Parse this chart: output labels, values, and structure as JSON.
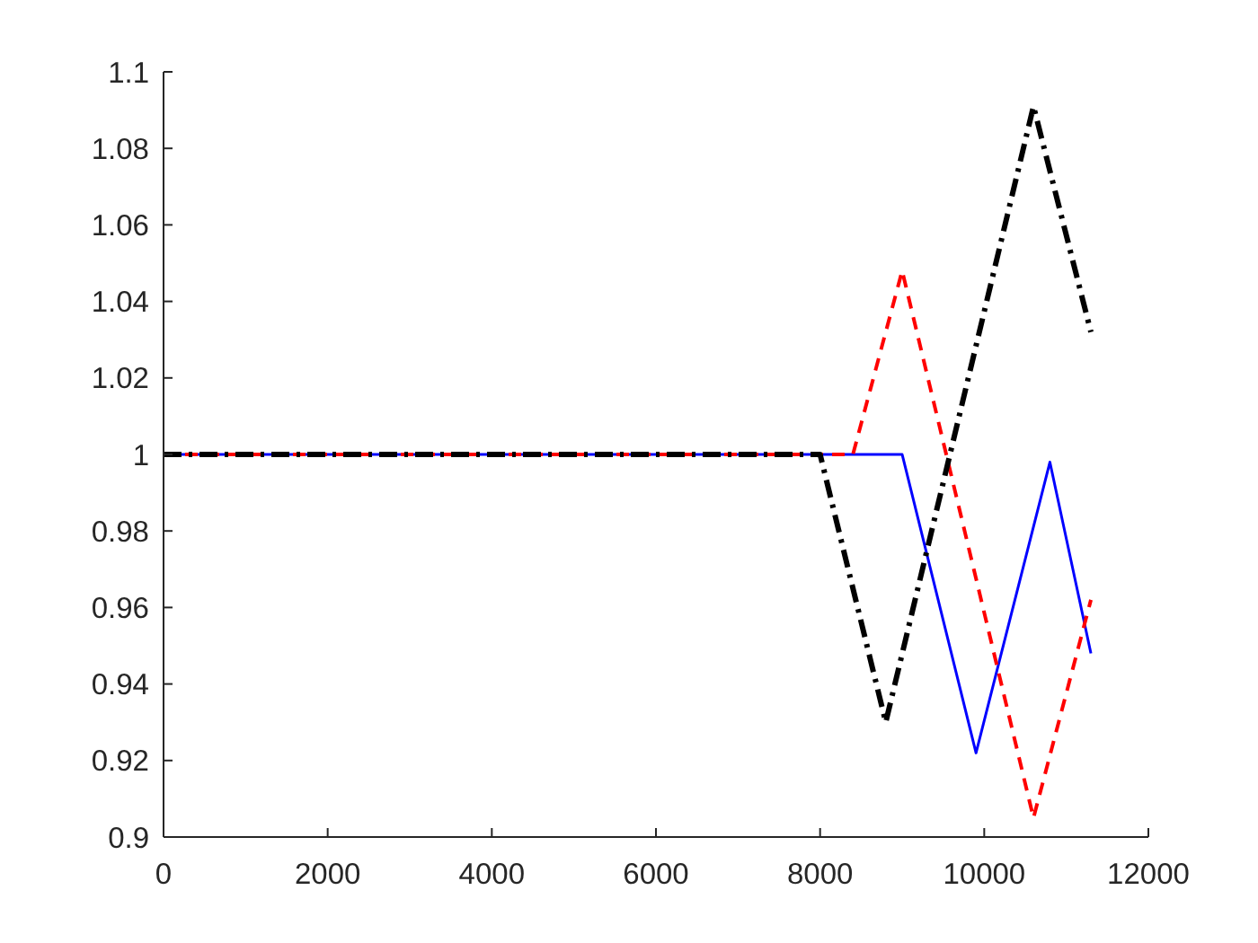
{
  "chart_data": {
    "type": "line",
    "series": [
      {
        "color": "#0000ff",
        "line_style": "solid",
        "x": [
          0,
          9000,
          9900,
          10800,
          11300
        ],
        "values": [
          1,
          1,
          0.922,
          0.998,
          0.948
        ]
      },
      {
        "color": "#ff0000",
        "line_style": "dashed",
        "x": [
          0,
          8400,
          9000,
          10600,
          11300
        ],
        "values": [
          1,
          1,
          1.048,
          0.905,
          0.962
        ]
      },
      {
        "color": "#000000",
        "line_style": "dashdot",
        "x": [
          0,
          8000,
          8800,
          10600,
          11300
        ],
        "values": [
          1,
          1,
          0.93,
          1.091,
          1.032
        ]
      }
    ],
    "xlim": [
      0,
      12000
    ],
    "ylim": [
      0.9,
      1.1
    ],
    "xticks": [
      0,
      2000,
      4000,
      6000,
      8000,
      10000,
      12000
    ],
    "yticks": [
      0.9,
      0.92,
      0.94,
      0.96,
      0.98,
      1,
      1.02,
      1.04,
      1.06,
      1.08,
      1.1
    ],
    "grid": false,
    "marker": "none"
  }
}
